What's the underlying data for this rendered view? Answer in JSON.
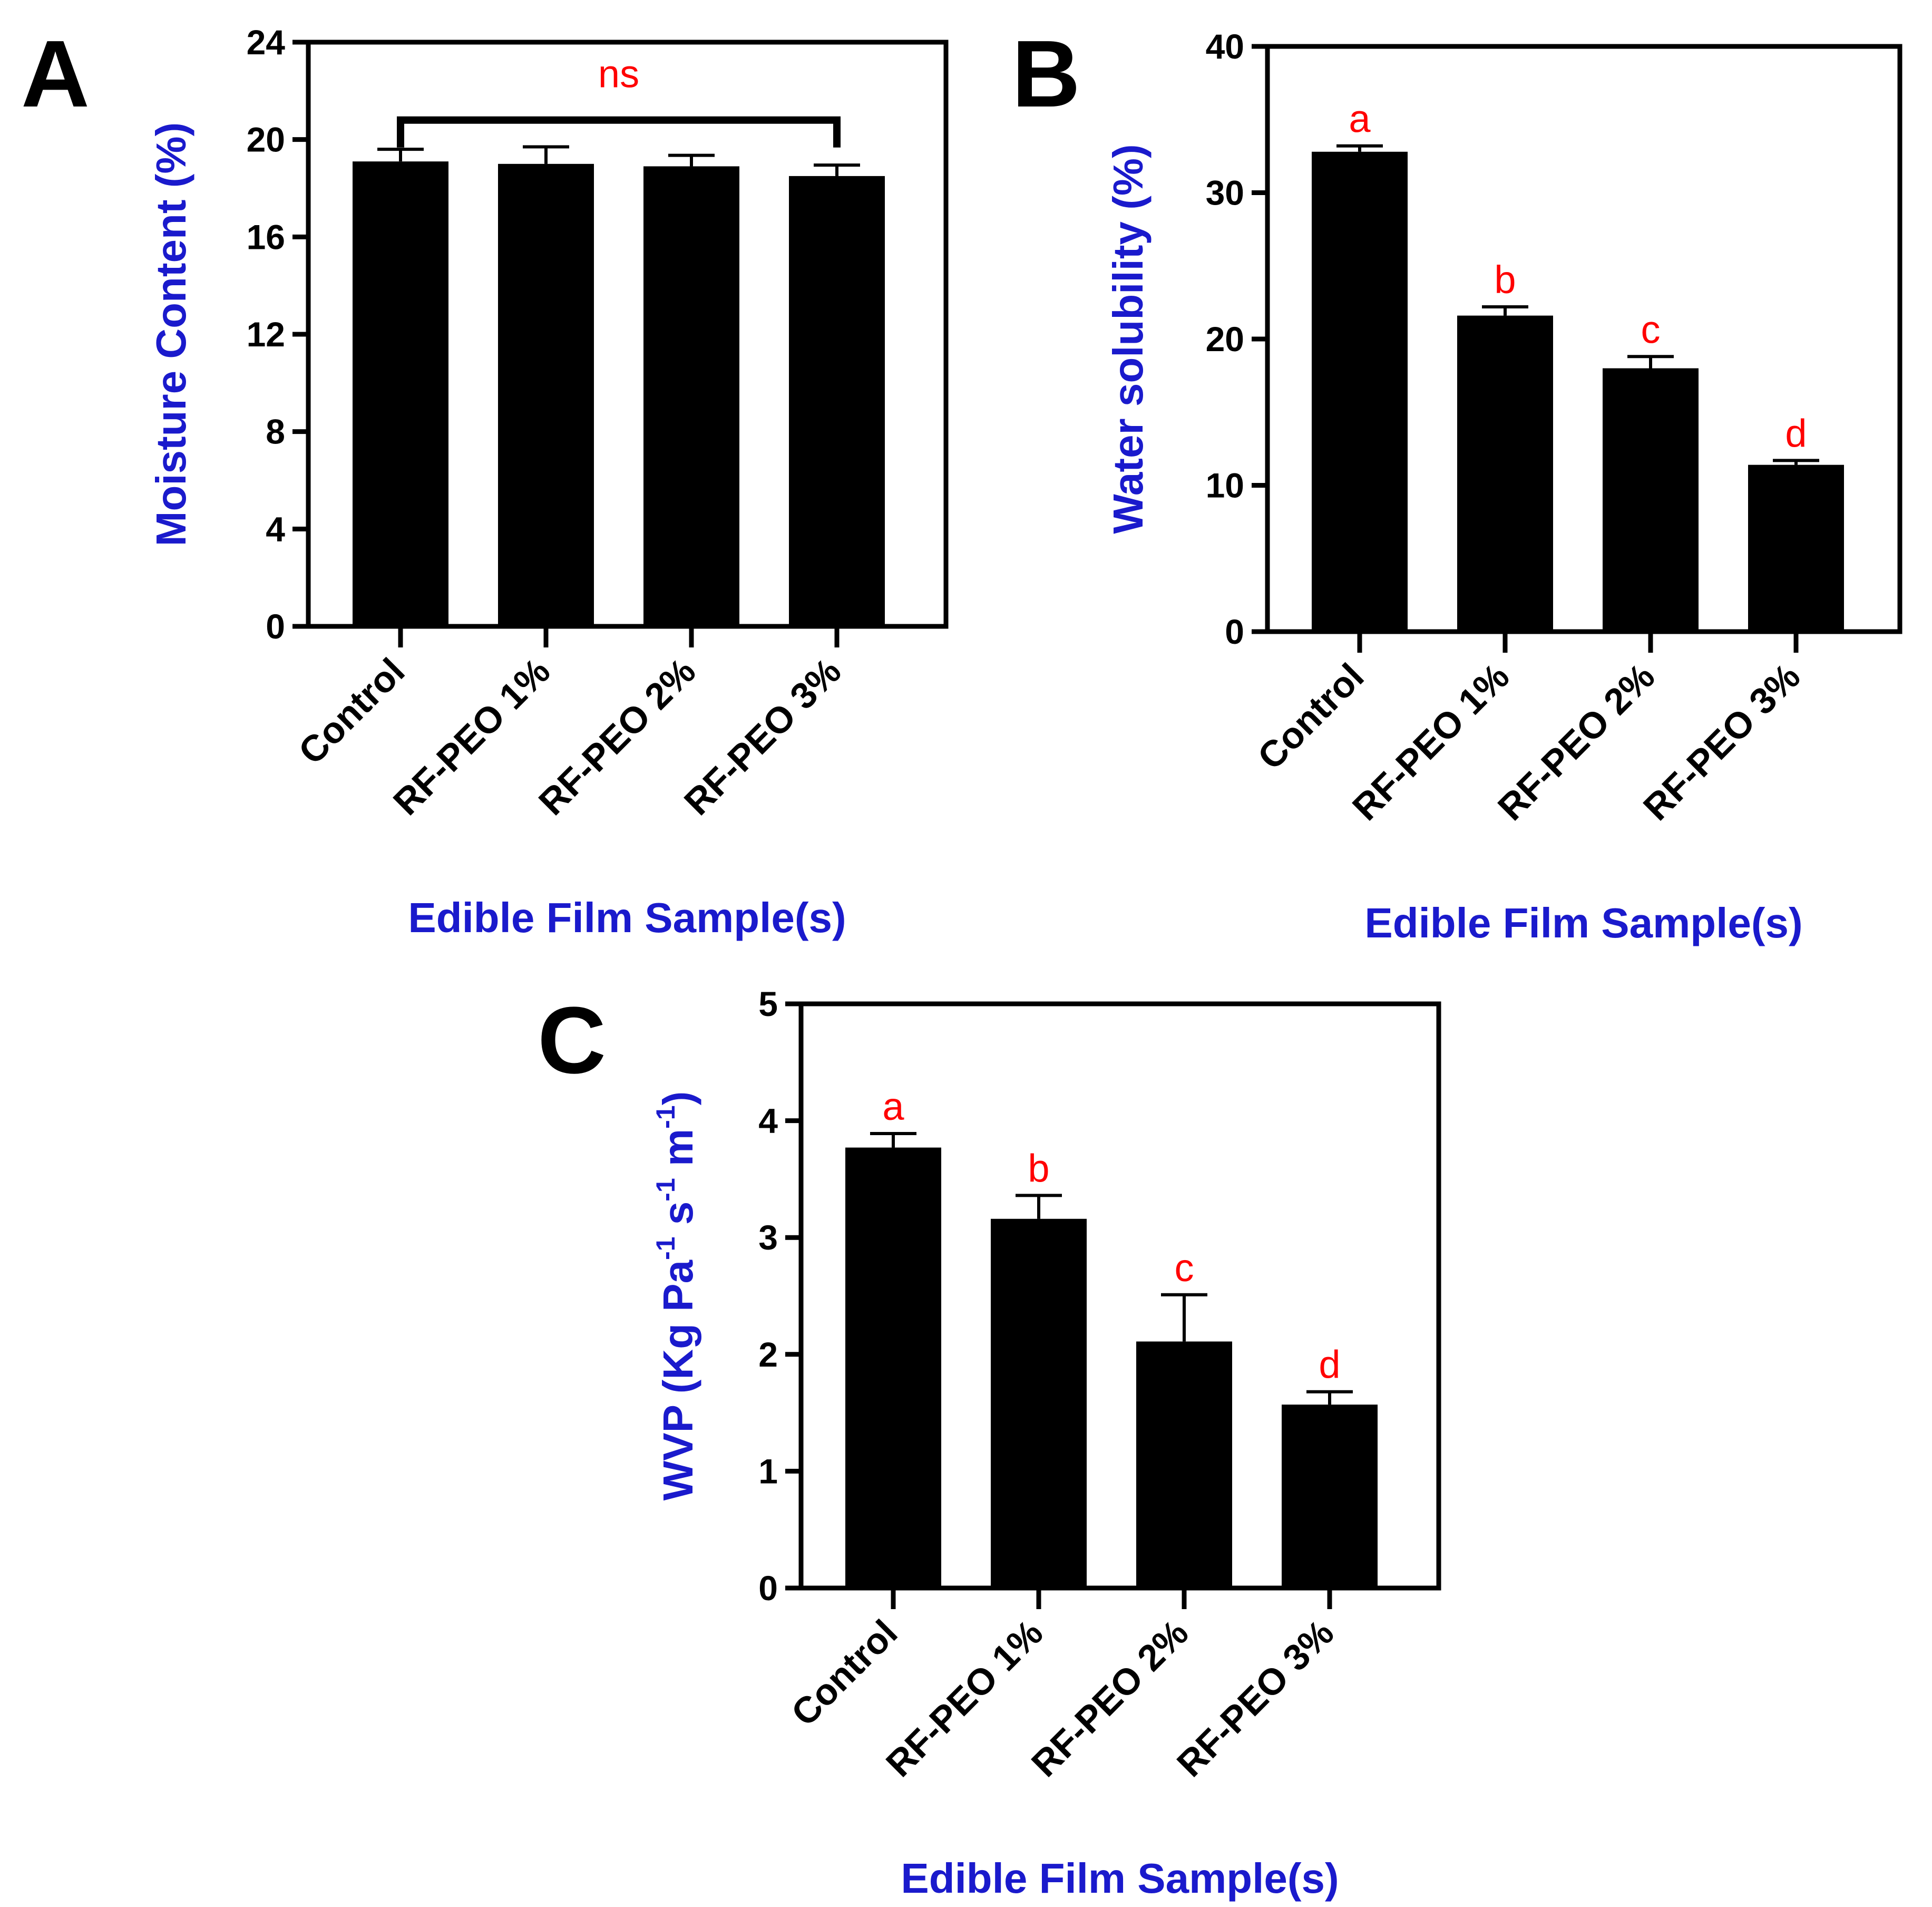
{
  "colors": {
    "bar": "#000000",
    "axis": "#000000",
    "title": "#1a1acc",
    "significance": "#ff0000"
  },
  "chart_data": [
    {
      "panel": "A",
      "type": "bar",
      "categories": [
        "Control",
        "RF-PEO 1%",
        "RF-PEO 2%",
        "RF-PEO 3%"
      ],
      "values": [
        19.1,
        19.0,
        18.9,
        18.5
      ],
      "errors": [
        0.5,
        0.7,
        0.45,
        0.45
      ],
      "ylabel": "Moisture Content (%)",
      "xlabel": "Edible Film Sample(s)",
      "ylim": [
        0,
        24
      ],
      "yticks": [
        0,
        4,
        8,
        12,
        16,
        20,
        24
      ],
      "significance_bracket": {
        "label": "ns",
        "from": "Control",
        "to": "RF-PEO 3%",
        "y": 20.8
      },
      "letters": []
    },
    {
      "panel": "B",
      "type": "bar",
      "categories": [
        "Control",
        "RF-PEO 1%",
        "RF-PEO 2%",
        "RF-PEO 3%"
      ],
      "values": [
        32.8,
        21.6,
        18.0,
        11.4
      ],
      "errors": [
        0.4,
        0.6,
        0.8,
        0.3
      ],
      "ylabel": "Water solubility (%)",
      "xlabel": "Edible Film Sample(s)",
      "ylim": [
        0,
        40
      ],
      "yticks": [
        0,
        10,
        20,
        30,
        40
      ],
      "letters": [
        "a",
        "b",
        "c",
        "d"
      ]
    },
    {
      "panel": "C",
      "type": "bar",
      "categories": [
        "Control",
        "RF-PEO 1%",
        "RF-PEO 2%",
        "RF-PEO 3%"
      ],
      "values": [
        3.77,
        3.16,
        2.11,
        1.57
      ],
      "errors": [
        0.12,
        0.2,
        0.4,
        0.11
      ],
      "ylabel": {
        "prefix": "WVP (Kg Pa",
        "sup1": "-1",
        "mid1": " s",
        "sup2": "-1",
        "mid2": " m",
        "sup3": "-1",
        "suffix": ")"
      },
      "xlabel": "Edible Film Sample(s)",
      "ylim": [
        0,
        5
      ],
      "yticks": [
        0,
        1,
        2,
        3,
        4,
        5
      ],
      "letters": [
        "a",
        "b",
        "c",
        "d"
      ]
    }
  ]
}
